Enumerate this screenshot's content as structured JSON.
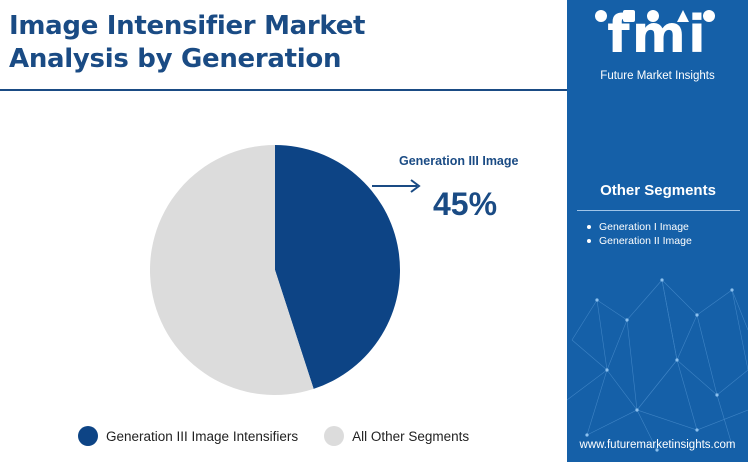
{
  "title": {
    "line1": "Image Intensifier Market",
    "line2": "Analysis by Generation"
  },
  "logo": {
    "text": "fmi",
    "caption": "Future Market Insights"
  },
  "sidebar": {
    "heading": "Other Segments",
    "items": [
      "Generation I Image",
      "Generation II Image"
    ],
    "website": "www.futuremarketinsights.com"
  },
  "callout": {
    "label": "Generation III Image",
    "value": "45%"
  },
  "colors": {
    "primary": "#1a4b84",
    "panel": "#1560a8",
    "slice_other": "#dcdcdc"
  },
  "chart_data": {
    "type": "pie",
    "slices": [
      {
        "name": "Generation III Image Intensifiers",
        "value": 45,
        "color": "#0d4485"
      },
      {
        "name": "All Other Segments",
        "value": 55,
        "color": "#dcdcdc"
      }
    ],
    "legend_position": "bottom"
  }
}
